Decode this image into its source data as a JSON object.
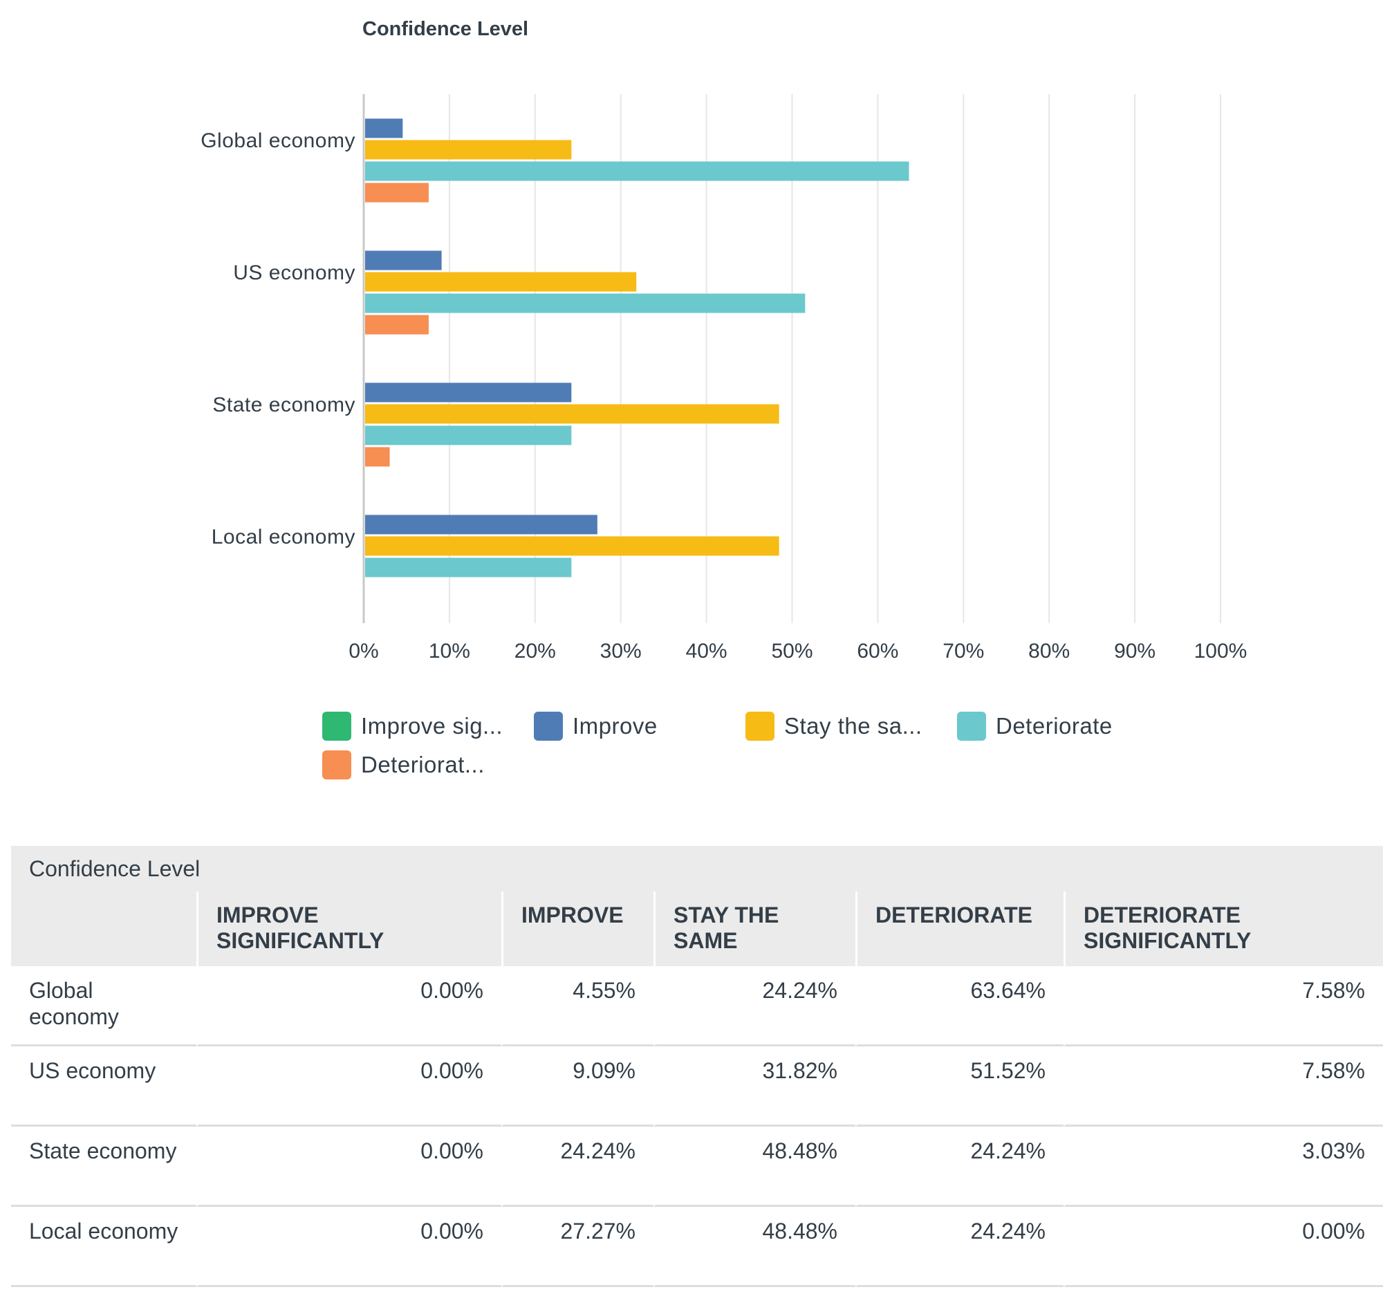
{
  "chart_data": {
    "type": "bar",
    "orientation": "horizontal",
    "title": "Confidence Level",
    "categories": [
      "Global economy",
      "US economy",
      "State economy",
      "Local economy"
    ],
    "series": [
      {
        "name": "Improve significantly",
        "legend_label": "Improve sig...",
        "color": "#2eb872",
        "values": [
          0.0,
          0.0,
          0.0,
          0.0
        ]
      },
      {
        "name": "Improve",
        "legend_label": "Improve",
        "color": "#507cb6",
        "values": [
          4.55,
          9.09,
          24.24,
          27.27
        ]
      },
      {
        "name": "Stay the same",
        "legend_label": "Stay the sa...",
        "color": "#f7bb16",
        "values": [
          24.24,
          31.82,
          48.48,
          48.48
        ]
      },
      {
        "name": "Deteriorate",
        "legend_label": "Deteriorate",
        "color": "#6bc8cd",
        "values": [
          63.64,
          51.52,
          24.24,
          24.24
        ]
      },
      {
        "name": "Deteriorate significantly",
        "legend_label": "Deteriorat...",
        "color": "#f78e52",
        "values": [
          7.58,
          7.58,
          3.03,
          0.0
        ]
      }
    ],
    "xlim": [
      0,
      100
    ],
    "x_ticks": [
      "0%",
      "10%",
      "20%",
      "30%",
      "40%",
      "50%",
      "60%",
      "70%",
      "80%",
      "90%",
      "100%"
    ],
    "grid": true,
    "legend_position": "bottom"
  },
  "table": {
    "title": "Confidence Level",
    "headers": [
      "",
      "IMPROVE SIGNIFICANTLY",
      "IMPROVE",
      "STAY THE SAME",
      "DETERIORATE",
      "DETERIORATE SIGNIFICANTLY"
    ],
    "rows": [
      {
        "label": "Global economy",
        "cells": [
          "0.00%",
          "4.55%",
          "24.24%",
          "63.64%",
          "7.58%"
        ]
      },
      {
        "label": "US economy",
        "cells": [
          "0.00%",
          "9.09%",
          "31.82%",
          "51.52%",
          "7.58%"
        ]
      },
      {
        "label": "State economy",
        "cells": [
          "0.00%",
          "24.24%",
          "48.48%",
          "24.24%",
          "3.03%"
        ]
      },
      {
        "label": "Local economy",
        "cells": [
          "0.00%",
          "27.27%",
          "48.48%",
          "24.24%",
          "0.00%"
        ]
      }
    ]
  }
}
